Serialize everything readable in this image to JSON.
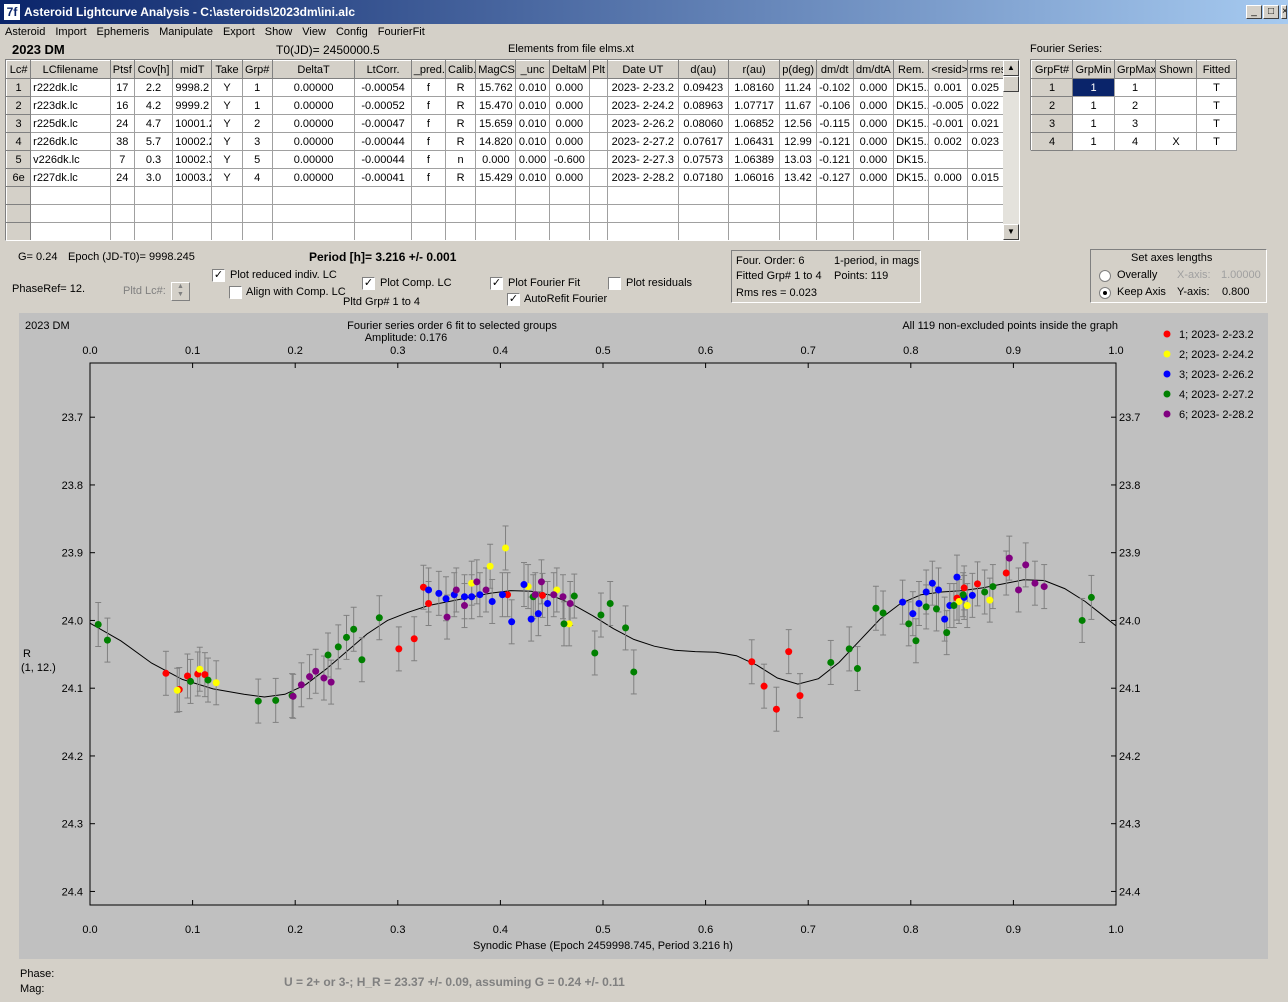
{
  "window": {
    "title": "Asteroid Lightcurve Analysis - C:\\asteroids\\2023dm\\ini.alc",
    "icon": "7f",
    "min_glyph": "_",
    "max_glyph": "□",
    "close_glyph": "×"
  },
  "menu": [
    "Asteroid",
    "Import",
    "Ephemeris",
    "Manipulate",
    "Export",
    "Show",
    "View",
    "Config",
    "FourierFit"
  ],
  "header": {
    "asteroid": "2023 DM",
    "t0": "T0(JD)= 2450000.5",
    "elements": "Elements from file elms.xt"
  },
  "lc_table": {
    "columns": [
      "Lc#",
      "LCfilename",
      "Ptsf",
      "Cov[h]",
      "midT",
      "Take",
      "Grp#",
      "DeltaT",
      "LtCorr.",
      "_pred.",
      "Calib.",
      "MagCS",
      "_unc",
      "DeltaM",
      "Plt",
      "Date UT",
      "d(au)",
      "r(au)",
      "p(deg)",
      "dm/dt",
      "dm/dtA",
      "Rem.",
      "<resid>",
      "rms res"
    ],
    "rows": [
      [
        "1",
        "r222dk.lc",
        "17",
        "2.2",
        "9998.2",
        "Y",
        "1",
        "0.00000",
        "-0.00054",
        "f",
        "R",
        "15.762",
        "0.010",
        "0.000",
        "",
        "2023- 2-23.2",
        "0.09423",
        "1.08160",
        "11.24",
        "-0.102",
        "0.000",
        "DK15...",
        "0.001",
        "0.025"
      ],
      [
        "2",
        "r223dk.lc",
        "16",
        "4.2",
        "9999.2",
        "Y",
        "1",
        "0.00000",
        "-0.00052",
        "f",
        "R",
        "15.470",
        "0.010",
        "0.000",
        "",
        "2023- 2-24.2",
        "0.08963",
        "1.07717",
        "11.67",
        "-0.106",
        "0.000",
        "DK15...",
        "-0.005",
        "0.022"
      ],
      [
        "3",
        "r225dk.lc",
        "24",
        "4.7",
        "10001.2",
        "Y",
        "2",
        "0.00000",
        "-0.00047",
        "f",
        "R",
        "15.659",
        "0.010",
        "0.000",
        "",
        "2023- 2-26.2",
        "0.08060",
        "1.06852",
        "12.56",
        "-0.115",
        "0.000",
        "DK15...",
        "-0.001",
        "0.021"
      ],
      [
        "4",
        "r226dk.lc",
        "38",
        "5.7",
        "10002.2",
        "Y",
        "3",
        "0.00000",
        "-0.00044",
        "f",
        "R",
        "14.820",
        "0.010",
        "0.000",
        "",
        "2023- 2-27.2",
        "0.07617",
        "1.06431",
        "12.99",
        "-0.121",
        "0.000",
        "DK15...",
        "0.002",
        "0.023"
      ],
      [
        "5",
        "v226dk.lc",
        "7",
        "0.3",
        "10002.3",
        "Y",
        "5",
        "0.00000",
        "-0.00044",
        "f",
        "n",
        "0.000",
        "0.000",
        "-0.600",
        "",
        "2023- 2-27.3",
        "0.07573",
        "1.06389",
        "13.03",
        "-0.121",
        "0.000",
        "DK15...",
        "",
        ""
      ],
      [
        "6e",
        "r227dk.lc",
        "24",
        "3.0",
        "10003.2",
        "Y",
        "4",
        "0.00000",
        "-0.00041",
        "f",
        "R",
        "15.429",
        "0.010",
        "0.000",
        "",
        "2023- 2-28.2",
        "0.07180",
        "1.06016",
        "13.42",
        "-0.127",
        "0.000",
        "DK15...",
        "0.000",
        "0.015"
      ]
    ],
    "empty_rows": 3
  },
  "fourier_series": {
    "label": "Fourier Series:",
    "columns": [
      "GrpFt#",
      "GrpMin",
      "GrpMax",
      "Shown",
      "Fitted"
    ],
    "rows": [
      [
        "1",
        "1",
        "1",
        "",
        "T"
      ],
      [
        "2",
        "1",
        "2",
        "",
        "T"
      ],
      [
        "3",
        "1",
        "3",
        "",
        "T"
      ],
      [
        "4",
        "1",
        "4",
        "X",
        "T"
      ]
    ],
    "selected_cell": "1"
  },
  "params": {
    "g": "G= 0.24",
    "epoch": "Epoch (JD-T0)= 9998.245",
    "period": "Period [h]= 3.216 +/- 0.001",
    "phaseref": "PhaseRef= 12.",
    "pltd_lc": "Pltd Lc#:",
    "pltd_grp": "Pltd Grp#  1   to   4"
  },
  "checks": {
    "plot_reduced": {
      "label": "Plot reduced indiv. LC",
      "checked": true
    },
    "align_comp": {
      "label": "Align with Comp. LC",
      "checked": false
    },
    "plot_comp": {
      "label": "Plot Comp. LC",
      "checked": true
    },
    "plot_fourier": {
      "label": "Plot Fourier Fit",
      "checked": true
    },
    "autorefit": {
      "label": "AutoRefit Fourier",
      "checked": true
    },
    "plot_residuals": {
      "label": "Plot residuals",
      "checked": false
    }
  },
  "fit_info": {
    "order": "Four. Order:  6",
    "period_mode": "1-period, in mags",
    "fitted": "Fitted Grp# 1 to 4",
    "points": "Points: 119",
    "rms": "Rms res     = 0.023"
  },
  "axes_box": {
    "title": "Set axes lengths",
    "overally": "Overally",
    "keep": "Keep Axis",
    "x_label": "X-axis:",
    "x_value": "1.00000",
    "y_label": "Y-axis:",
    "y_value": "0.800"
  },
  "graph": {
    "name": "2023 DM",
    "title": "Fourier series order 6 fit to selected groups",
    "amplitude": "Amplitude: 0.176",
    "status": "All 119 non-excluded points inside the graph",
    "xlabel": "Synodic Phase (Epoch 2459998.745, Period 3.216 h)",
    "ylabel_1": "R",
    "ylabel_2": "(1, 12.)"
  },
  "footer": {
    "phase": "Phase:",
    "mag": "Mag:",
    "result": "U = 2+ or 3-; H_R = 23.37 +/- 0.09, assuming G = 0.24 +/- 0.11"
  },
  "chart_data": {
    "type": "scatter",
    "xlim": [
      0.0,
      1.0
    ],
    "ylim": [
      24.42,
      23.62
    ],
    "x_ticks": [
      "0.0",
      "0.1",
      "0.2",
      "0.3",
      "0.4",
      "0.5",
      "0.6",
      "0.7",
      "0.8",
      "0.9",
      "1.0"
    ],
    "y_ticks": [
      "23.7",
      "23.8",
      "23.9",
      "24.0",
      "24.1",
      "24.2",
      "24.3",
      "24.4"
    ],
    "grid": false,
    "legend_position": "right",
    "series": [
      {
        "name": "1; 2023- 2-23.2",
        "color": "#ff0000",
        "points": [
          [
            0.074,
            24.078
          ],
          [
            0.087,
            24.102
          ],
          [
            0.095,
            24.082
          ],
          [
            0.105,
            24.079
          ],
          [
            0.112,
            24.08
          ],
          [
            0.301,
            24.042
          ],
          [
            0.316,
            24.027
          ],
          [
            0.325,
            23.951
          ],
          [
            0.33,
            23.975
          ],
          [
            0.407,
            23.962
          ],
          [
            0.441,
            23.963
          ],
          [
            0.645,
            24.061
          ],
          [
            0.657,
            24.097
          ],
          [
            0.669,
            24.131
          ],
          [
            0.681,
            24.046
          ],
          [
            0.692,
            24.111
          ],
          [
            0.845,
            23.967
          ],
          [
            0.852,
            23.952
          ],
          [
            0.865,
            23.946
          ],
          [
            0.893,
            23.93
          ]
        ]
      },
      {
        "name": "2; 2023- 2-24.2",
        "color": "#ffff00",
        "points": [
          [
            0.085,
            24.103
          ],
          [
            0.107,
            24.072
          ],
          [
            0.123,
            24.092
          ],
          [
            0.372,
            23.945
          ],
          [
            0.39,
            23.92
          ],
          [
            0.405,
            23.893
          ],
          [
            0.427,
            23.95
          ],
          [
            0.455,
            23.955
          ],
          [
            0.467,
            24.005
          ],
          [
            0.847,
            23.972
          ],
          [
            0.855,
            23.978
          ],
          [
            0.877,
            23.97
          ]
        ]
      },
      {
        "name": "3; 2023- 2-26.2",
        "color": "#0000ff",
        "points": [
          [
            0.33,
            23.955
          ],
          [
            0.34,
            23.96
          ],
          [
            0.347,
            23.968
          ],
          [
            0.355,
            23.962
          ],
          [
            0.365,
            23.965
          ],
          [
            0.372,
            23.965
          ],
          [
            0.38,
            23.962
          ],
          [
            0.392,
            23.972
          ],
          [
            0.402,
            23.962
          ],
          [
            0.411,
            24.002
          ],
          [
            0.423,
            23.947
          ],
          [
            0.43,
            23.998
          ],
          [
            0.437,
            23.99
          ],
          [
            0.446,
            23.975
          ],
          [
            0.792,
            23.973
          ],
          [
            0.802,
            23.99
          ],
          [
            0.808,
            23.975
          ],
          [
            0.815,
            23.958
          ],
          [
            0.821,
            23.945
          ],
          [
            0.827,
            23.955
          ],
          [
            0.833,
            23.998
          ],
          [
            0.838,
            23.978
          ],
          [
            0.845,
            23.936
          ],
          [
            0.852,
            23.966
          ],
          [
            0.86,
            23.963
          ]
        ]
      },
      {
        "name": "4; 2023- 2-27.2",
        "color": "#008000",
        "points": [
          [
            0.008,
            24.006
          ],
          [
            0.017,
            24.029
          ],
          [
            0.098,
            24.09
          ],
          [
            0.115,
            24.088
          ],
          [
            0.164,
            24.119
          ],
          [
            0.181,
            24.118
          ],
          [
            0.197,
            24.111
          ],
          [
            0.232,
            24.051
          ],
          [
            0.242,
            24.039
          ],
          [
            0.25,
            24.025
          ],
          [
            0.257,
            24.013
          ],
          [
            0.265,
            24.058
          ],
          [
            0.282,
            23.996
          ],
          [
            0.432,
            23.965
          ],
          [
            0.462,
            24.005
          ],
          [
            0.472,
            23.964
          ],
          [
            0.492,
            24.048
          ],
          [
            0.498,
            23.992
          ],
          [
            0.507,
            23.975
          ],
          [
            0.522,
            24.011
          ],
          [
            0.53,
            24.076
          ],
          [
            0.722,
            24.062
          ],
          [
            0.74,
            24.042
          ],
          [
            0.748,
            24.071
          ],
          [
            0.766,
            23.982
          ],
          [
            0.773,
            23.989
          ],
          [
            0.798,
            24.005
          ],
          [
            0.805,
            24.03
          ],
          [
            0.815,
            23.98
          ],
          [
            0.825,
            23.983
          ],
          [
            0.835,
            24.018
          ],
          [
            0.842,
            23.978
          ],
          [
            0.851,
            23.962
          ],
          [
            0.872,
            23.958
          ],
          [
            0.88,
            23.95
          ],
          [
            0.967,
            24.0
          ],
          [
            0.976,
            23.966
          ]
        ]
      },
      {
        "name": "6; 2023- 2-28.2",
        "color": "#800080",
        "points": [
          [
            0.198,
            24.112
          ],
          [
            0.206,
            24.095
          ],
          [
            0.214,
            24.083
          ],
          [
            0.22,
            24.075
          ],
          [
            0.228,
            24.085
          ],
          [
            0.235,
            24.091
          ],
          [
            0.348,
            23.995
          ],
          [
            0.357,
            23.955
          ],
          [
            0.365,
            23.978
          ],
          [
            0.377,
            23.943
          ],
          [
            0.386,
            23.955
          ],
          [
            0.434,
            23.962
          ],
          [
            0.44,
            23.943
          ],
          [
            0.452,
            23.962
          ],
          [
            0.461,
            23.965
          ],
          [
            0.468,
            23.975
          ],
          [
            0.896,
            23.908
          ],
          [
            0.905,
            23.955
          ],
          [
            0.912,
            23.918
          ],
          [
            0.921,
            23.945
          ],
          [
            0.93,
            23.95
          ]
        ]
      }
    ],
    "fit_curve": [
      [
        0.0,
        24.004
      ],
      [
        0.03,
        24.03
      ],
      [
        0.06,
        24.063
      ],
      [
        0.09,
        24.087
      ],
      [
        0.12,
        24.101
      ],
      [
        0.15,
        24.109
      ],
      [
        0.17,
        24.113
      ],
      [
        0.19,
        24.109
      ],
      [
        0.21,
        24.095
      ],
      [
        0.23,
        24.072
      ],
      [
        0.25,
        24.046
      ],
      [
        0.27,
        24.02
      ],
      [
        0.29,
        24.0
      ],
      [
        0.31,
        23.988
      ],
      [
        0.33,
        23.978
      ],
      [
        0.35,
        23.972
      ],
      [
        0.37,
        23.966
      ],
      [
        0.39,
        23.96
      ],
      [
        0.41,
        23.956
      ],
      [
        0.43,
        23.957
      ],
      [
        0.45,
        23.963
      ],
      [
        0.47,
        23.976
      ],
      [
        0.49,
        23.993
      ],
      [
        0.51,
        24.012
      ],
      [
        0.53,
        24.028
      ],
      [
        0.55,
        24.038
      ],
      [
        0.57,
        24.044
      ],
      [
        0.59,
        24.046
      ],
      [
        0.61,
        24.047
      ],
      [
        0.63,
        24.052
      ],
      [
        0.65,
        24.066
      ],
      [
        0.67,
        24.085
      ],
      [
        0.69,
        24.094
      ],
      [
        0.71,
        24.086
      ],
      [
        0.73,
        24.062
      ],
      [
        0.75,
        24.03
      ],
      [
        0.77,
        23.998
      ],
      [
        0.79,
        23.975
      ],
      [
        0.81,
        23.962
      ],
      [
        0.83,
        23.958
      ],
      [
        0.85,
        23.956
      ],
      [
        0.87,
        23.952
      ],
      [
        0.89,
        23.946
      ],
      [
        0.91,
        23.94
      ],
      [
        0.93,
        23.941
      ],
      [
        0.95,
        23.953
      ],
      [
        0.97,
        23.972
      ],
      [
        0.99,
        23.996
      ],
      [
        1.0,
        24.008
      ]
    ]
  }
}
